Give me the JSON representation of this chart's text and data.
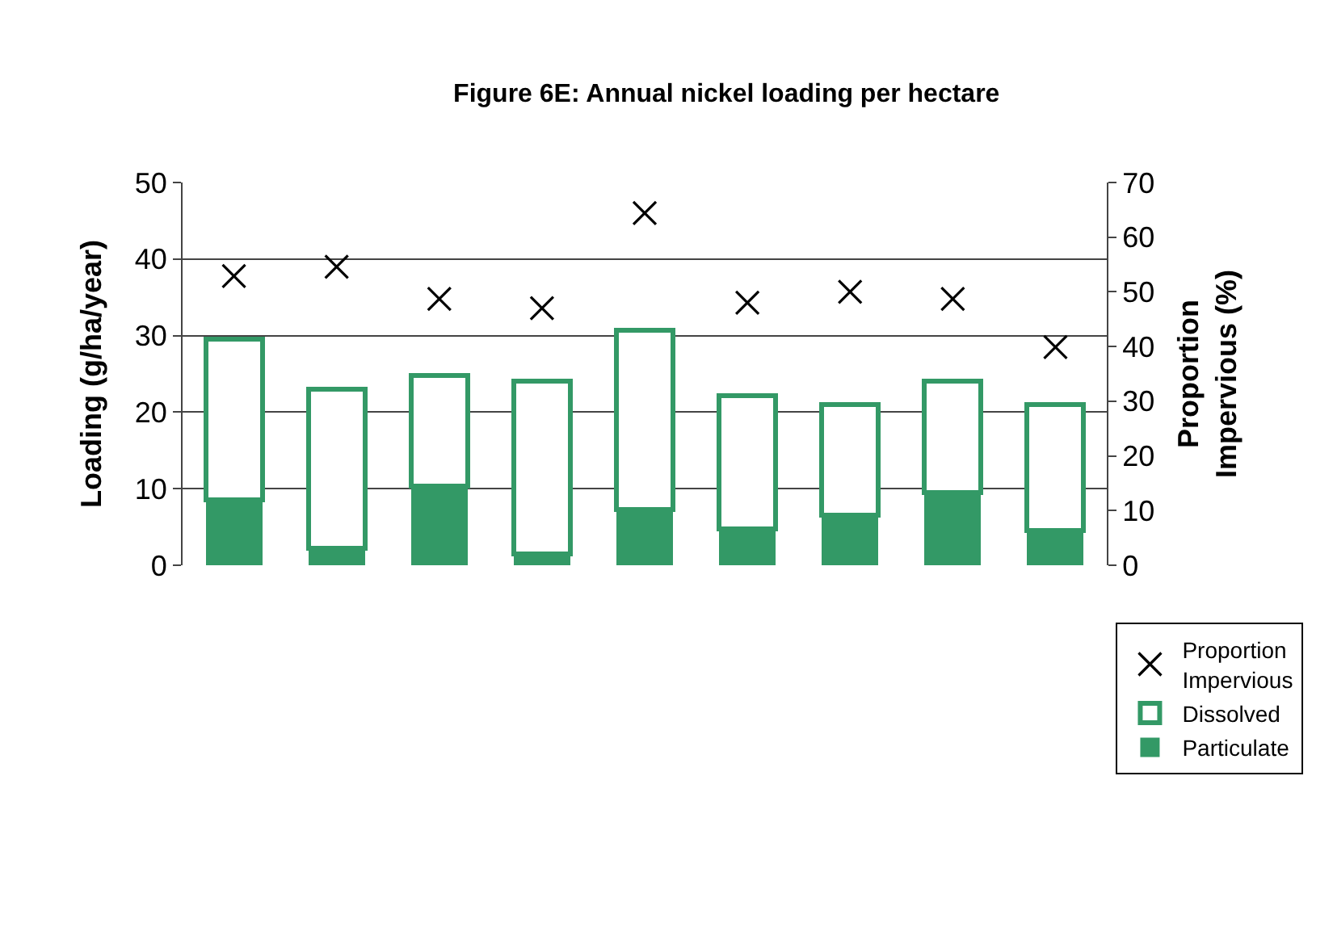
{
  "chart_data": {
    "type": "bar",
    "title": "Figure 6E: Annual nickel loading per hectare",
    "ylabel": "Loading (g/ha/year)",
    "y2label": "Proportion Impervious (%)",
    "categories": [
      null,
      null,
      null,
      null,
      null,
      null,
      null,
      null,
      null
    ],
    "stacked": true,
    "series": [
      {
        "name": "Particulate",
        "color": "#339966",
        "values": [
          8.5,
          2.2,
          10.3,
          1.5,
          7.3,
          4.8,
          6.5,
          9.5,
          4.5
        ]
      },
      {
        "name": "Dissolved",
        "color": "#339966",
        "values": [
          21,
          20.8,
          14.5,
          22.5,
          23.4,
          17.4,
          14.5,
          14.5,
          16.5
        ]
      },
      {
        "name": "Proportion Impervious",
        "type": "scatter",
        "axis": "y2",
        "marker": "cross",
        "color": "#000000",
        "values": [
          52.9,
          54.6,
          48.7,
          47,
          64.4,
          48,
          50,
          48.7,
          39.9
        ]
      }
    ],
    "ylim": [
      0,
      50
    ],
    "yticks": [
      0,
      10,
      20,
      30,
      40,
      50
    ],
    "y2lim": [
      0,
      70
    ],
    "y2ticks": [
      0,
      10,
      20,
      30,
      40,
      50,
      60,
      70
    ],
    "grid": "y",
    "legend": "bottom right"
  }
}
